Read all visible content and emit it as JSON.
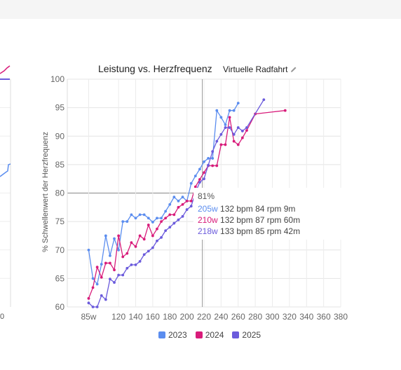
{
  "chart_data": {
    "type": "line",
    "title": "Leistung vs. Herzfrequenz",
    "subtitle": "Virtuelle Radfahrt",
    "ylabel": "% Schwellenwert der Herzfrequenz",
    "xlabel": "",
    "xlim": [
      60,
      380
    ],
    "ylim": [
      60,
      100
    ],
    "xticks": [
      "85w",
      "120",
      "140",
      "160",
      "180",
      "200",
      "220",
      "240",
      "260",
      "280",
      "300",
      "320",
      "340",
      "360",
      "380"
    ],
    "yticks": [
      "100",
      "95",
      "90",
      "85",
      "80",
      "75",
      "70",
      "65",
      "60"
    ],
    "grid": true,
    "legend_position": "bottom",
    "crosshair_x": 218,
    "series": [
      {
        "name": "2023",
        "color": "#5b8def",
        "x": [
          85,
          90,
          95,
          100,
          105,
          110,
          115,
          120,
          125,
          130,
          135,
          140,
          145,
          150,
          155,
          160,
          165,
          170,
          175,
          180,
          185,
          190,
          195,
          200,
          205,
          210,
          215,
          220,
          225,
          230,
          235,
          240,
          245,
          250,
          255,
          260
        ],
        "y": [
          70,
          65,
          64,
          67.5,
          72.5,
          69,
          72,
          70,
          75,
          75,
          76.2,
          75.6,
          76.2,
          76.2,
          75.6,
          74.9,
          75.6,
          75.6,
          76.8,
          78,
          79.3,
          78.6,
          79.3,
          78.6,
          81.7,
          83,
          84.2,
          85.5,
          86.1,
          86.1,
          94.5,
          93.3,
          92,
          94.5,
          94.5,
          95.8
        ]
      },
      {
        "name": "2024",
        "color": "#d81b7a",
        "x": [
          85,
          90,
          95,
          100,
          105,
          110,
          115,
          120,
          125,
          130,
          135,
          140,
          145,
          150,
          155,
          160,
          165,
          170,
          175,
          180,
          185,
          190,
          195,
          200,
          205,
          210,
          215,
          220,
          225,
          230,
          235,
          240,
          245,
          250,
          255,
          260,
          265,
          270,
          280,
          315
        ],
        "y": [
          61.5,
          63.4,
          67,
          65.2,
          67.7,
          67.7,
          66.5,
          72.5,
          68.8,
          69.4,
          71.3,
          70.6,
          72.5,
          71.9,
          74.4,
          72.5,
          73.7,
          75,
          75.6,
          76.2,
          76.2,
          77.5,
          78,
          78.6,
          78.6,
          81.1,
          82.4,
          83.6,
          84.8,
          84.8,
          84.8,
          88.5,
          88.5,
          93.3,
          89.1,
          88.5,
          89.7,
          91,
          93.9,
          94.5
        ]
      },
      {
        "name": "2025",
        "color": "#6b5bdc",
        "x": [
          85,
          90,
          95,
          100,
          105,
          110,
          115,
          120,
          125,
          130,
          135,
          140,
          145,
          150,
          155,
          160,
          165,
          170,
          175,
          180,
          185,
          190,
          195,
          200,
          205,
          210,
          215,
          220,
          225,
          230,
          235,
          240,
          245,
          250,
          255,
          260,
          265,
          270,
          290
        ],
        "y": [
          60.7,
          60,
          60,
          62,
          61.3,
          64.9,
          64.3,
          65.6,
          65.6,
          66.8,
          67.4,
          67.4,
          68,
          69.2,
          69.8,
          70.4,
          71.6,
          72.2,
          73.4,
          74,
          74.7,
          75.3,
          75.9,
          77.1,
          77.7,
          80.1,
          81.9,
          82.5,
          84.9,
          87.3,
          89.1,
          90.3,
          91.5,
          91.5,
          90.3,
          91.5,
          90.9,
          91.5,
          96.4
        ]
      }
    ]
  },
  "tooltip": {
    "percent": "81%",
    "rows": [
      {
        "watts": "205w",
        "detail": "132 bpm 84 rpm 9m",
        "color": "#5b8def"
      },
      {
        "watts": "210w",
        "detail": "132 bpm 87 rpm 60m",
        "color": "#d81b7a"
      },
      {
        "watts": "218w",
        "detail": "133 bpm 85 rpm 42m",
        "color": "#6b5bdc"
      }
    ]
  },
  "left_partial_tick": "0"
}
